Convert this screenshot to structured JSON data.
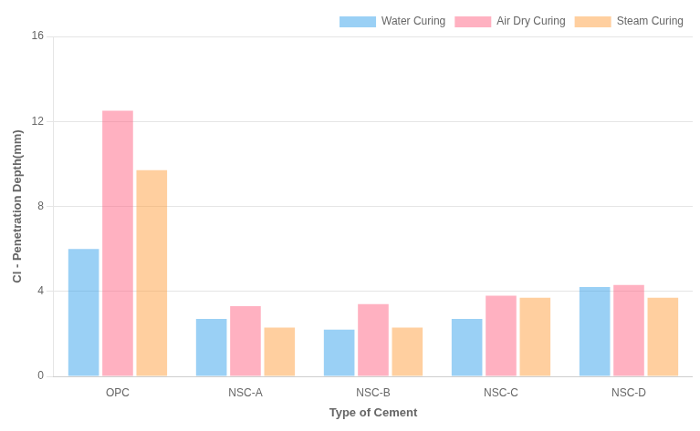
{
  "chart_data": {
    "type": "bar",
    "xlabel": "Type of Cement",
    "ylabel": "Cl - Penetration Depth(mm)",
    "categories": [
      "OPC",
      "NSC-A",
      "NSC-B",
      "NSC-C",
      "NSC-D"
    ],
    "series": [
      {
        "name": "Water Curing",
        "values": [
          6.0,
          2.7,
          2.2,
          2.7,
          4.2
        ]
      },
      {
        "name": "Air Dry Curing",
        "values": [
          12.5,
          3.3,
          3.4,
          3.8,
          4.3
        ]
      },
      {
        "name": "Steam Curing",
        "values": [
          9.7,
          2.3,
          2.3,
          3.7,
          3.7
        ]
      }
    ],
    "ylim": [
      0,
      16
    ],
    "yticks": [
      0,
      4,
      8,
      12,
      16
    ],
    "grid": true,
    "legend": "upper right"
  }
}
